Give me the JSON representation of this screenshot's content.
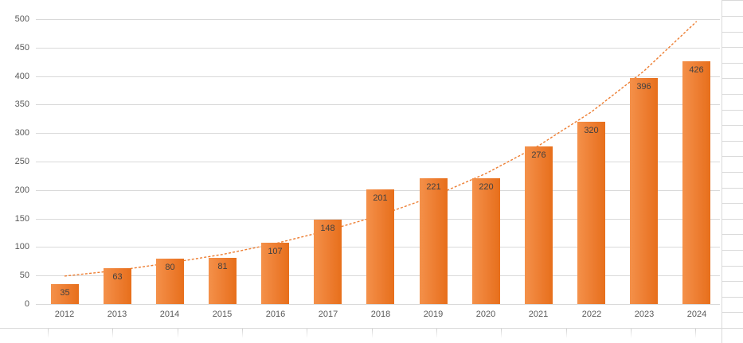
{
  "chart_data": {
    "type": "bar",
    "categories": [
      "2012",
      "2013",
      "2014",
      "2015",
      "2016",
      "2017",
      "2018",
      "2019",
      "2020",
      "2021",
      "2022",
      "2023",
      "2024"
    ],
    "values": [
      35,
      63,
      80,
      81,
      107,
      148,
      201,
      221,
      220,
      276,
      320,
      396,
      426
    ],
    "yticks": [
      "0",
      "50",
      "100",
      "150",
      "200",
      "250",
      "300",
      "350",
      "400",
      "450",
      "500"
    ],
    "ylim": [
      0,
      500
    ],
    "grid": true,
    "legend": "none",
    "data_labels_position": "inside-end",
    "trendline": {
      "type": "exponential",
      "style": "dashed",
      "values": [
        49,
        59,
        72,
        87,
        106,
        129,
        156,
        189,
        229,
        278,
        337,
        409,
        496
      ]
    },
    "colors": {
      "bar": "#ED7D31",
      "bar_gradient_light": "#F4914A",
      "bar_gradient_dark": "#E76F1B",
      "trendline": "#ED7D31",
      "gridline": "#D9D9D9",
      "axis_label": "#595959",
      "data_label": "#404040",
      "sheet_gridline": "#D9D9D9"
    }
  }
}
